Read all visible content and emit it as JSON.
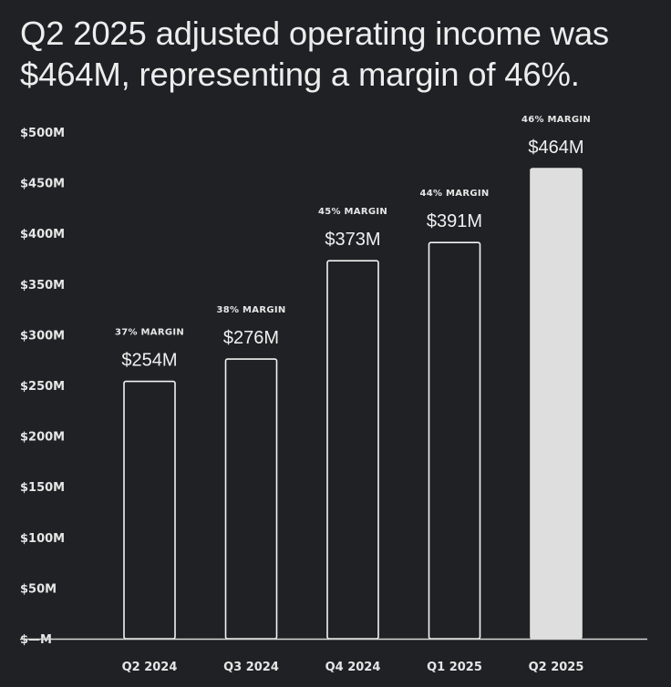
{
  "headline": "Q2 2025 adjusted operating income was $464M, representing a margin of 46%.",
  "chart_data": {
    "type": "bar",
    "title": "",
    "xlabel": "",
    "ylabel": "",
    "categories": [
      "Q2 2024",
      "Q3 2024",
      "Q4 2024",
      "Q1 2025",
      "Q2 2025"
    ],
    "values": [
      254,
      276,
      373,
      391,
      464
    ],
    "value_labels": [
      "$254M",
      "$276M",
      "$373M",
      "$391M",
      "$464M"
    ],
    "margin_labels": [
      "37% MARGIN",
      "38% MARGIN",
      "45% MARGIN",
      "44% MARGIN",
      "46% MARGIN"
    ],
    "highlighted_index": 4,
    "ylim": [
      0,
      500
    ],
    "yticks": [
      0,
      50,
      100,
      150,
      200,
      250,
      300,
      350,
      400,
      450,
      500
    ],
    "ytick_labels": [
      "$—M",
      "$50M",
      "$100M",
      "$150M",
      "$200M",
      "$250M",
      "$300M",
      "$350M",
      "$400M",
      "$450M",
      "$500M"
    ],
    "grid": false,
    "units": "USD millions"
  },
  "colors": {
    "background": "#1f2124",
    "text": "#ececec",
    "bar_outline": "#f2f2f2",
    "bar_highlight_fill": "#dedede",
    "axis_line": "#d8d8d8"
  }
}
